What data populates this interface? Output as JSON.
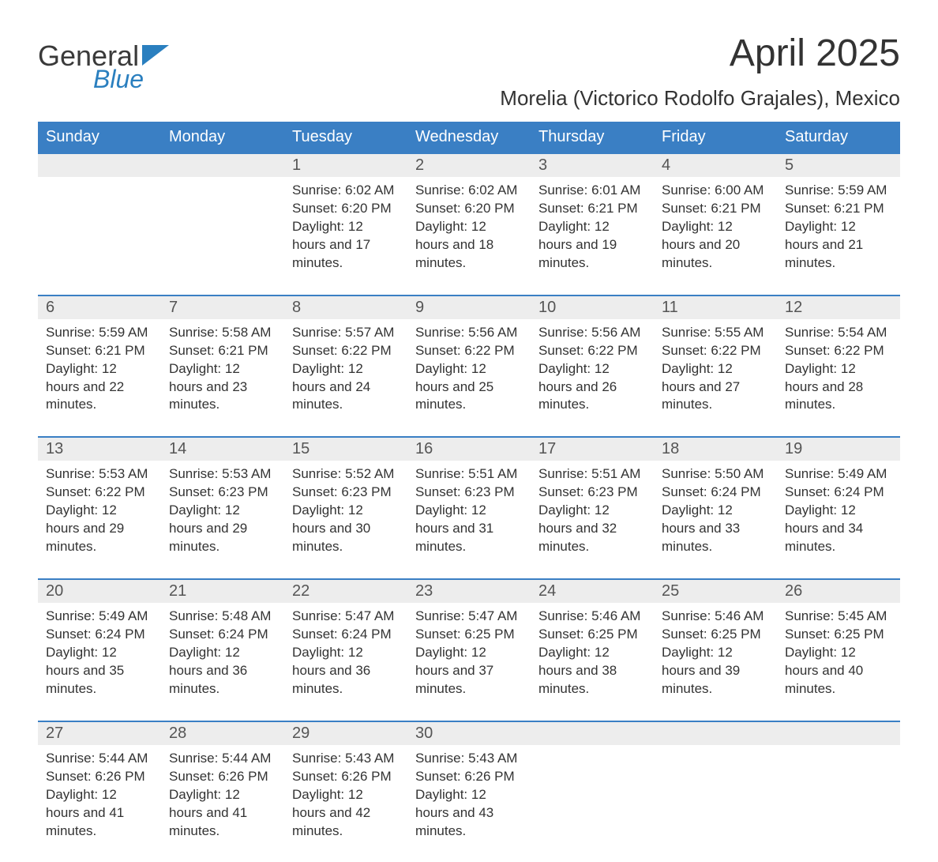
{
  "logo": {
    "text_general": "General",
    "text_blue": "Blue",
    "triangle_color": "#2a7fbf"
  },
  "title": "April 2025",
  "location": "Morelia (Victorico Rodolfo Grajales), Mexico",
  "colors": {
    "header_bg": "#3a7fc4",
    "header_text": "#ffffff",
    "date_bg": "#ededed",
    "week_border": "#3a7fc4",
    "body_text": "#333333"
  },
  "day_names": [
    "Sunday",
    "Monday",
    "Tuesday",
    "Wednesday",
    "Thursday",
    "Friday",
    "Saturday"
  ],
  "weeks": [
    [
      null,
      null,
      {
        "date": "1",
        "sunrise": "Sunrise: 6:02 AM",
        "sunset": "Sunset: 6:20 PM",
        "daylight": "Daylight: 12 hours and 17 minutes."
      },
      {
        "date": "2",
        "sunrise": "Sunrise: 6:02 AM",
        "sunset": "Sunset: 6:20 PM",
        "daylight": "Daylight: 12 hours and 18 minutes."
      },
      {
        "date": "3",
        "sunrise": "Sunrise: 6:01 AM",
        "sunset": "Sunset: 6:21 PM",
        "daylight": "Daylight: 12 hours and 19 minutes."
      },
      {
        "date": "4",
        "sunrise": "Sunrise: 6:00 AM",
        "sunset": "Sunset: 6:21 PM",
        "daylight": "Daylight: 12 hours and 20 minutes."
      },
      {
        "date": "5",
        "sunrise": "Sunrise: 5:59 AM",
        "sunset": "Sunset: 6:21 PM",
        "daylight": "Daylight: 12 hours and 21 minutes."
      }
    ],
    [
      {
        "date": "6",
        "sunrise": "Sunrise: 5:59 AM",
        "sunset": "Sunset: 6:21 PM",
        "daylight": "Daylight: 12 hours and 22 minutes."
      },
      {
        "date": "7",
        "sunrise": "Sunrise: 5:58 AM",
        "sunset": "Sunset: 6:21 PM",
        "daylight": "Daylight: 12 hours and 23 minutes."
      },
      {
        "date": "8",
        "sunrise": "Sunrise: 5:57 AM",
        "sunset": "Sunset: 6:22 PM",
        "daylight": "Daylight: 12 hours and 24 minutes."
      },
      {
        "date": "9",
        "sunrise": "Sunrise: 5:56 AM",
        "sunset": "Sunset: 6:22 PM",
        "daylight": "Daylight: 12 hours and 25 minutes."
      },
      {
        "date": "10",
        "sunrise": "Sunrise: 5:56 AM",
        "sunset": "Sunset: 6:22 PM",
        "daylight": "Daylight: 12 hours and 26 minutes."
      },
      {
        "date": "11",
        "sunrise": "Sunrise: 5:55 AM",
        "sunset": "Sunset: 6:22 PM",
        "daylight": "Daylight: 12 hours and 27 minutes."
      },
      {
        "date": "12",
        "sunrise": "Sunrise: 5:54 AM",
        "sunset": "Sunset: 6:22 PM",
        "daylight": "Daylight: 12 hours and 28 minutes."
      }
    ],
    [
      {
        "date": "13",
        "sunrise": "Sunrise: 5:53 AM",
        "sunset": "Sunset: 6:22 PM",
        "daylight": "Daylight: 12 hours and 29 minutes."
      },
      {
        "date": "14",
        "sunrise": "Sunrise: 5:53 AM",
        "sunset": "Sunset: 6:23 PM",
        "daylight": "Daylight: 12 hours and 29 minutes."
      },
      {
        "date": "15",
        "sunrise": "Sunrise: 5:52 AM",
        "sunset": "Sunset: 6:23 PM",
        "daylight": "Daylight: 12 hours and 30 minutes."
      },
      {
        "date": "16",
        "sunrise": "Sunrise: 5:51 AM",
        "sunset": "Sunset: 6:23 PM",
        "daylight": "Daylight: 12 hours and 31 minutes."
      },
      {
        "date": "17",
        "sunrise": "Sunrise: 5:51 AM",
        "sunset": "Sunset: 6:23 PM",
        "daylight": "Daylight: 12 hours and 32 minutes."
      },
      {
        "date": "18",
        "sunrise": "Sunrise: 5:50 AM",
        "sunset": "Sunset: 6:24 PM",
        "daylight": "Daylight: 12 hours and 33 minutes."
      },
      {
        "date": "19",
        "sunrise": "Sunrise: 5:49 AM",
        "sunset": "Sunset: 6:24 PM",
        "daylight": "Daylight: 12 hours and 34 minutes."
      }
    ],
    [
      {
        "date": "20",
        "sunrise": "Sunrise: 5:49 AM",
        "sunset": "Sunset: 6:24 PM",
        "daylight": "Daylight: 12 hours and 35 minutes."
      },
      {
        "date": "21",
        "sunrise": "Sunrise: 5:48 AM",
        "sunset": "Sunset: 6:24 PM",
        "daylight": "Daylight: 12 hours and 36 minutes."
      },
      {
        "date": "22",
        "sunrise": "Sunrise: 5:47 AM",
        "sunset": "Sunset: 6:24 PM",
        "daylight": "Daylight: 12 hours and 36 minutes."
      },
      {
        "date": "23",
        "sunrise": "Sunrise: 5:47 AM",
        "sunset": "Sunset: 6:25 PM",
        "daylight": "Daylight: 12 hours and 37 minutes."
      },
      {
        "date": "24",
        "sunrise": "Sunrise: 5:46 AM",
        "sunset": "Sunset: 6:25 PM",
        "daylight": "Daylight: 12 hours and 38 minutes."
      },
      {
        "date": "25",
        "sunrise": "Sunrise: 5:46 AM",
        "sunset": "Sunset: 6:25 PM",
        "daylight": "Daylight: 12 hours and 39 minutes."
      },
      {
        "date": "26",
        "sunrise": "Sunrise: 5:45 AM",
        "sunset": "Sunset: 6:25 PM",
        "daylight": "Daylight: 12 hours and 40 minutes."
      }
    ],
    [
      {
        "date": "27",
        "sunrise": "Sunrise: 5:44 AM",
        "sunset": "Sunset: 6:26 PM",
        "daylight": "Daylight: 12 hours and 41 minutes."
      },
      {
        "date": "28",
        "sunrise": "Sunrise: 5:44 AM",
        "sunset": "Sunset: 6:26 PM",
        "daylight": "Daylight: 12 hours and 41 minutes."
      },
      {
        "date": "29",
        "sunrise": "Sunrise: 5:43 AM",
        "sunset": "Sunset: 6:26 PM",
        "daylight": "Daylight: 12 hours and 42 minutes."
      },
      {
        "date": "30",
        "sunrise": "Sunrise: 5:43 AM",
        "sunset": "Sunset: 6:26 PM",
        "daylight": "Daylight: 12 hours and 43 minutes."
      },
      null,
      null,
      null
    ]
  ]
}
